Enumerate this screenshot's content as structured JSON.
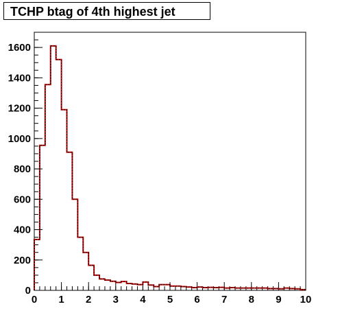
{
  "chart_data": {
    "type": "bar",
    "title": "TCHP btag of 4th highest jet",
    "xlabel": "",
    "ylabel": "",
    "xlim": [
      0,
      10
    ],
    "ylim": [
      0,
      1700
    ],
    "bin_width": 0.2,
    "x_ticks": [
      "0",
      "1",
      "2",
      "3",
      "4",
      "5",
      "6",
      "7",
      "8",
      "9",
      "10"
    ],
    "y_ticks": [
      "0",
      "200",
      "400",
      "600",
      "800",
      "1000",
      "1200",
      "1400",
      "1600"
    ],
    "grid": false,
    "legend": "none",
    "series": [
      {
        "color": "#cc0000",
        "style": "step",
        "values": [
          335,
          955,
          1355,
          1610,
          1520,
          1190,
          910,
          600,
          350,
          250,
          165,
          100,
          75,
          68,
          60,
          52,
          58,
          45,
          42,
          38,
          55,
          35,
          25,
          38,
          38,
          28,
          28,
          25,
          22,
          18,
          22,
          18,
          20,
          18,
          20,
          15,
          18,
          15,
          15,
          15,
          15,
          15,
          15,
          12,
          12,
          10,
          15,
          12,
          10,
          5
        ]
      },
      {
        "color": "#000000",
        "style": "dashed-step",
        "values": [
          335,
          955,
          1355,
          1610,
          1520,
          1190,
          910,
          600,
          350,
          250,
          165,
          100,
          75,
          68,
          60,
          52,
          58,
          45,
          42,
          38,
          55,
          35,
          25,
          38,
          38,
          28,
          28,
          25,
          22,
          18,
          22,
          18,
          20,
          18,
          20,
          15,
          18,
          15,
          15,
          15,
          15,
          15,
          15,
          12,
          12,
          10,
          15,
          12,
          10,
          5
        ]
      }
    ]
  }
}
